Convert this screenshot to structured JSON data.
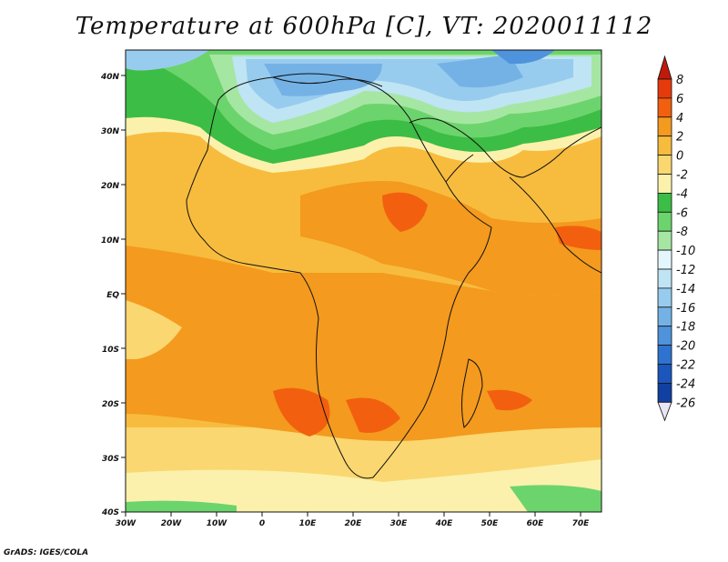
{
  "title": "Temperature at 600hPa [C], VT: 2020011112",
  "credit": "GrADS: IGES/COLA",
  "map": {
    "lat_labels": [
      "40N",
      "30N",
      "20N",
      "10N",
      "EQ",
      "10S",
      "20S",
      "30S",
      "40S"
    ],
    "lon_labels": [
      "30W",
      "20W",
      "10W",
      "0",
      "10E",
      "20E",
      "30E",
      "40E",
      "50E",
      "60E",
      "70E"
    ]
  },
  "colorbar": {
    "labels": [
      "8",
      "6",
      "4",
      "2",
      "0",
      "-2",
      "-4",
      "-6",
      "-8",
      "-10",
      "-12",
      "-14",
      "-16",
      "-18",
      "-20",
      "-22",
      "-24",
      "-26"
    ],
    "colors": [
      "#c01a0a",
      "#e63a0c",
      "#f2600f",
      "#f49a1e",
      "#f7bc3e",
      "#fad770",
      "#fbf1ac",
      "#3cbd45",
      "#6cd46c",
      "#a6e6a3",
      "#e3f6fb",
      "#bfe4f4",
      "#98ccee",
      "#74b2e6",
      "#4e93dc",
      "#2f73d0",
      "#1b56bd",
      "#113fa2",
      "#0c1a78"
    ]
  }
}
